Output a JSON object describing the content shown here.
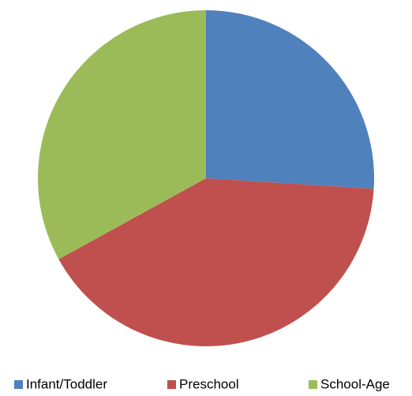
{
  "chart_data": {
    "type": "pie",
    "categories": [
      "Infant/Toddler",
      "Preschool",
      "School-Age"
    ],
    "values": [
      26,
      41,
      33
    ],
    "colors": [
      "#4f81bd",
      "#c0504d",
      "#9bbb59"
    ],
    "legend": "bottom"
  }
}
